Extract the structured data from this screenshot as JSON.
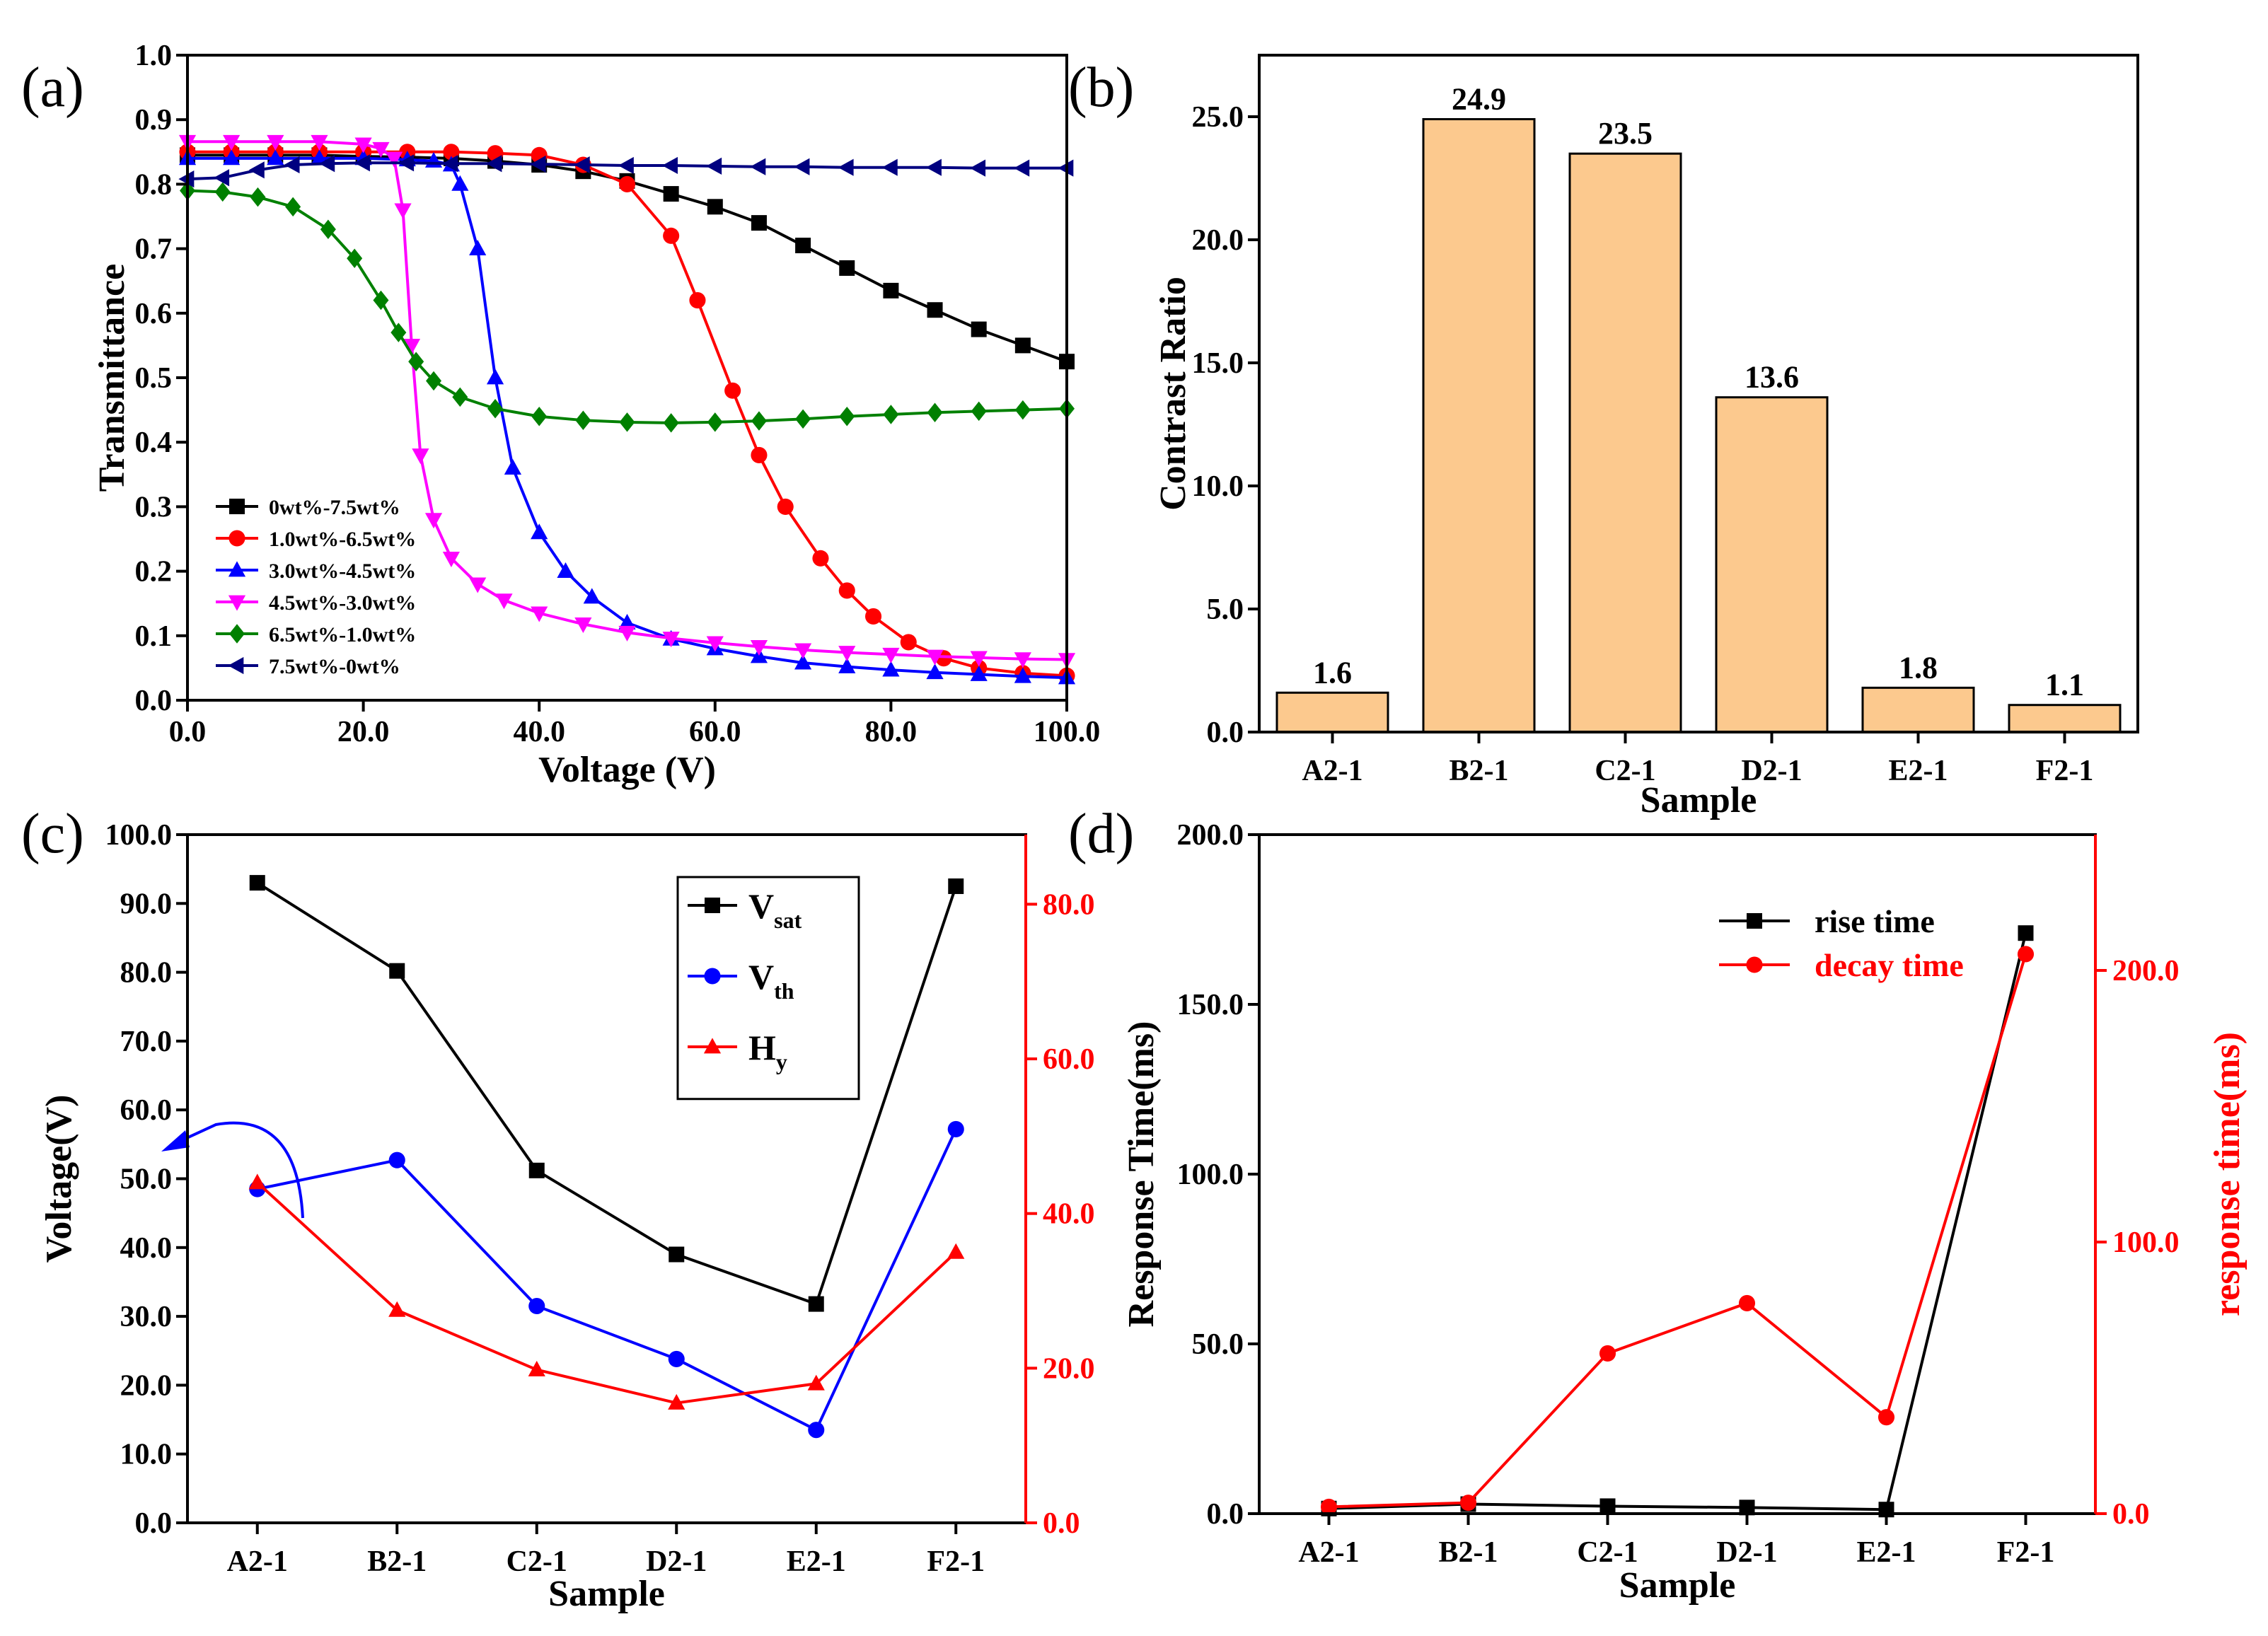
{
  "panels": {
    "a": {
      "label": "(a)"
    },
    "b": {
      "label": "(b)"
    },
    "c": {
      "label": "(c)"
    },
    "d": {
      "label": "(d)"
    }
  },
  "chart_data": [
    {
      "id": "a",
      "type": "line",
      "xlabel": "Voltage (V)",
      "ylabel": "Transmittance",
      "xlim": [
        0,
        100
      ],
      "ylim": [
        0,
        1.0
      ],
      "xticks": [
        "0.0",
        "20.0",
        "40.0",
        "60.0",
        "80.0",
        "100.0"
      ],
      "yticks": [
        "0.0",
        "0.1",
        "0.2",
        "0.3",
        "0.4",
        "0.5",
        "0.6",
        "0.7",
        "0.8",
        "0.9",
        "1.0"
      ],
      "legend_position": "bottom-left",
      "series": [
        {
          "name": "0wt%-7.5wt%",
          "color": "#000000",
          "marker": "square",
          "x": [
            0,
            5,
            10,
            15,
            20,
            25,
            30,
            35,
            40,
            45,
            50,
            55,
            60,
            65,
            70,
            75,
            80,
            85,
            90,
            95,
            100
          ],
          "y": [
            0.845,
            0.845,
            0.845,
            0.845,
            0.843,
            0.842,
            0.84,
            0.836,
            0.83,
            0.82,
            0.805,
            0.785,
            0.765,
            0.74,
            0.705,
            0.67,
            0.635,
            0.605,
            0.575,
            0.55,
            0.525
          ]
        },
        {
          "name": "1.0wt%-6.5wt%",
          "color": "#ff0000",
          "marker": "circle",
          "x": [
            0,
            5,
            10,
            15,
            20,
            25,
            30,
            35,
            40,
            45,
            50,
            55,
            58,
            62,
            65,
            68,
            72,
            75,
            78,
            82,
            86,
            90,
            95,
            100
          ],
          "y": [
            0.85,
            0.85,
            0.85,
            0.85,
            0.85,
            0.85,
            0.85,
            0.848,
            0.845,
            0.83,
            0.8,
            0.72,
            0.62,
            0.48,
            0.38,
            0.3,
            0.22,
            0.17,
            0.13,
            0.09,
            0.065,
            0.05,
            0.042,
            0.038
          ]
        },
        {
          "name": "3.0wt%-4.5wt%",
          "color": "#0000ff",
          "marker": "triangle-up",
          "x": [
            0,
            5,
            10,
            15,
            20,
            25,
            28,
            30,
            31,
            33,
            35,
            37,
            40,
            43,
            46,
            50,
            55,
            60,
            65,
            70,
            75,
            80,
            85,
            90,
            95,
            100
          ],
          "y": [
            0.84,
            0.84,
            0.84,
            0.84,
            0.84,
            0.838,
            0.836,
            0.83,
            0.8,
            0.7,
            0.5,
            0.36,
            0.26,
            0.2,
            0.16,
            0.12,
            0.095,
            0.08,
            0.068,
            0.058,
            0.052,
            0.047,
            0.043,
            0.04,
            0.037,
            0.035
          ]
        },
        {
          "name": "4.5wt%-3.0wt%",
          "color": "#ff00ff",
          "marker": "triangle-down",
          "x": [
            0,
            5,
            10,
            15,
            20,
            22,
            23.5,
            24.5,
            25.5,
            26.5,
            28,
            30,
            33,
            36,
            40,
            45,
            50,
            55,
            60,
            65,
            70,
            75,
            80,
            85,
            90,
            95,
            100
          ],
          "y": [
            0.866,
            0.866,
            0.866,
            0.866,
            0.862,
            0.855,
            0.84,
            0.76,
            0.55,
            0.38,
            0.28,
            0.22,
            0.18,
            0.155,
            0.135,
            0.118,
            0.105,
            0.096,
            0.089,
            0.083,
            0.078,
            0.074,
            0.071,
            0.068,
            0.066,
            0.064,
            0.063
          ]
        },
        {
          "name": "6.5wt%-1.0wt%",
          "color": "#008000",
          "marker": "diamond",
          "x": [
            0,
            4,
            8,
            12,
            16,
            19,
            22,
            24,
            26,
            28,
            31,
            35,
            40,
            45,
            50,
            55,
            60,
            65,
            70,
            75,
            80,
            85,
            90,
            95,
            100
          ],
          "y": [
            0.79,
            0.788,
            0.78,
            0.765,
            0.73,
            0.685,
            0.62,
            0.57,
            0.525,
            0.495,
            0.47,
            0.452,
            0.44,
            0.434,
            0.431,
            0.43,
            0.431,
            0.433,
            0.436,
            0.44,
            0.443,
            0.446,
            0.448,
            0.45,
            0.452
          ]
        },
        {
          "name": "7.5wt%-0wt%",
          "color": "#000080",
          "marker": "triangle-left",
          "x": [
            0,
            4,
            8,
            12,
            16,
            20,
            25,
            30,
            35,
            40,
            45,
            50,
            55,
            60,
            65,
            70,
            75,
            80,
            85,
            90,
            95,
            100
          ],
          "y": [
            0.808,
            0.81,
            0.822,
            0.83,
            0.832,
            0.833,
            0.833,
            0.832,
            0.832,
            0.831,
            0.83,
            0.829,
            0.829,
            0.828,
            0.827,
            0.827,
            0.826,
            0.826,
            0.826,
            0.825,
            0.825,
            0.825
          ]
        }
      ]
    },
    {
      "id": "b",
      "type": "bar",
      "xlabel": "Sample",
      "ylabel": "Contrast Ratio",
      "categories": [
        "A2-1",
        "B2-1",
        "C2-1",
        "D2-1",
        "E2-1",
        "F2-1"
      ],
      "values": [
        1.6,
        24.9,
        23.5,
        13.6,
        1.8,
        1.1
      ],
      "value_labels": [
        "1.6",
        "24.9",
        "23.5",
        "13.6",
        "1.8",
        "1.1"
      ],
      "ylim": [
        0,
        27.5
      ],
      "yticks": [
        "0.0",
        "5.0",
        "10.0",
        "15.0",
        "20.0",
        "25.0"
      ],
      "bar_color": "#fcc98e"
    },
    {
      "id": "c",
      "type": "line",
      "xlabel": "Sample",
      "ylabel": "Voltage(V)",
      "categories": [
        "A2-1",
        "B2-1",
        "C2-1",
        "D2-1",
        "E2-1",
        "F2-1"
      ],
      "ylim": [
        0,
        100
      ],
      "yticks": [
        "0.0",
        "10.0",
        "20.0",
        "30.0",
        "40.0",
        "50.0",
        "60.0",
        "70.0",
        "80.0",
        "90.0",
        "100.0"
      ],
      "y2lim": [
        0,
        89
      ],
      "y2ticks": [
        "0.0",
        "20.0",
        "40.0",
        "60.0",
        "80.0"
      ],
      "legend_position": "top-right",
      "series": [
        {
          "name": "Vsat",
          "label_main": "V",
          "label_sub": "sat",
          "axis": "left",
          "color": "#000000",
          "marker": "square",
          "values": [
            93.0,
            80.2,
            51.2,
            39.0,
            31.8,
            92.5
          ]
        },
        {
          "name": "Vth",
          "label_main": "V",
          "label_sub": "th",
          "axis": "left",
          "color": "#0000ff",
          "marker": "circle",
          "values": [
            48.5,
            52.7,
            31.5,
            23.8,
            13.5,
            57.2
          ]
        },
        {
          "name": "Hy",
          "label_main": "H",
          "label_sub": "y",
          "axis": "right",
          "color": "#ff0000",
          "marker": "triangle-up",
          "values": [
            44.0,
            27.5,
            19.8,
            15.5,
            18.0,
            35.0
          ]
        }
      ]
    },
    {
      "id": "d",
      "type": "line",
      "xlabel": "Sample",
      "ylabel": "Response Time(ms)",
      "y2label": "response time(ms)",
      "categories": [
        "A2-1",
        "B2-1",
        "C2-1",
        "D2-1",
        "E2-1",
        "F2-1"
      ],
      "ylim": [
        0,
        200
      ],
      "yticks": [
        "0.0",
        "50.0",
        "100.0",
        "150.0",
        "200.0"
      ],
      "y2lim": [
        0,
        250
      ],
      "y2ticks": [
        "0.0",
        "100.0",
        "200.0"
      ],
      "legend_position": "top-right",
      "series": [
        {
          "name": "rise time",
          "axis": "left",
          "color": "#000000",
          "marker": "square",
          "values": [
            1.5,
            2.8,
            2.2,
            1.8,
            1.2,
            171.0
          ]
        },
        {
          "name": "decay time",
          "axis": "right",
          "color": "#ff0000",
          "marker": "circle",
          "values": [
            2.5,
            4.0,
            59.0,
            77.5,
            35.5,
            206.0
          ]
        }
      ]
    }
  ]
}
